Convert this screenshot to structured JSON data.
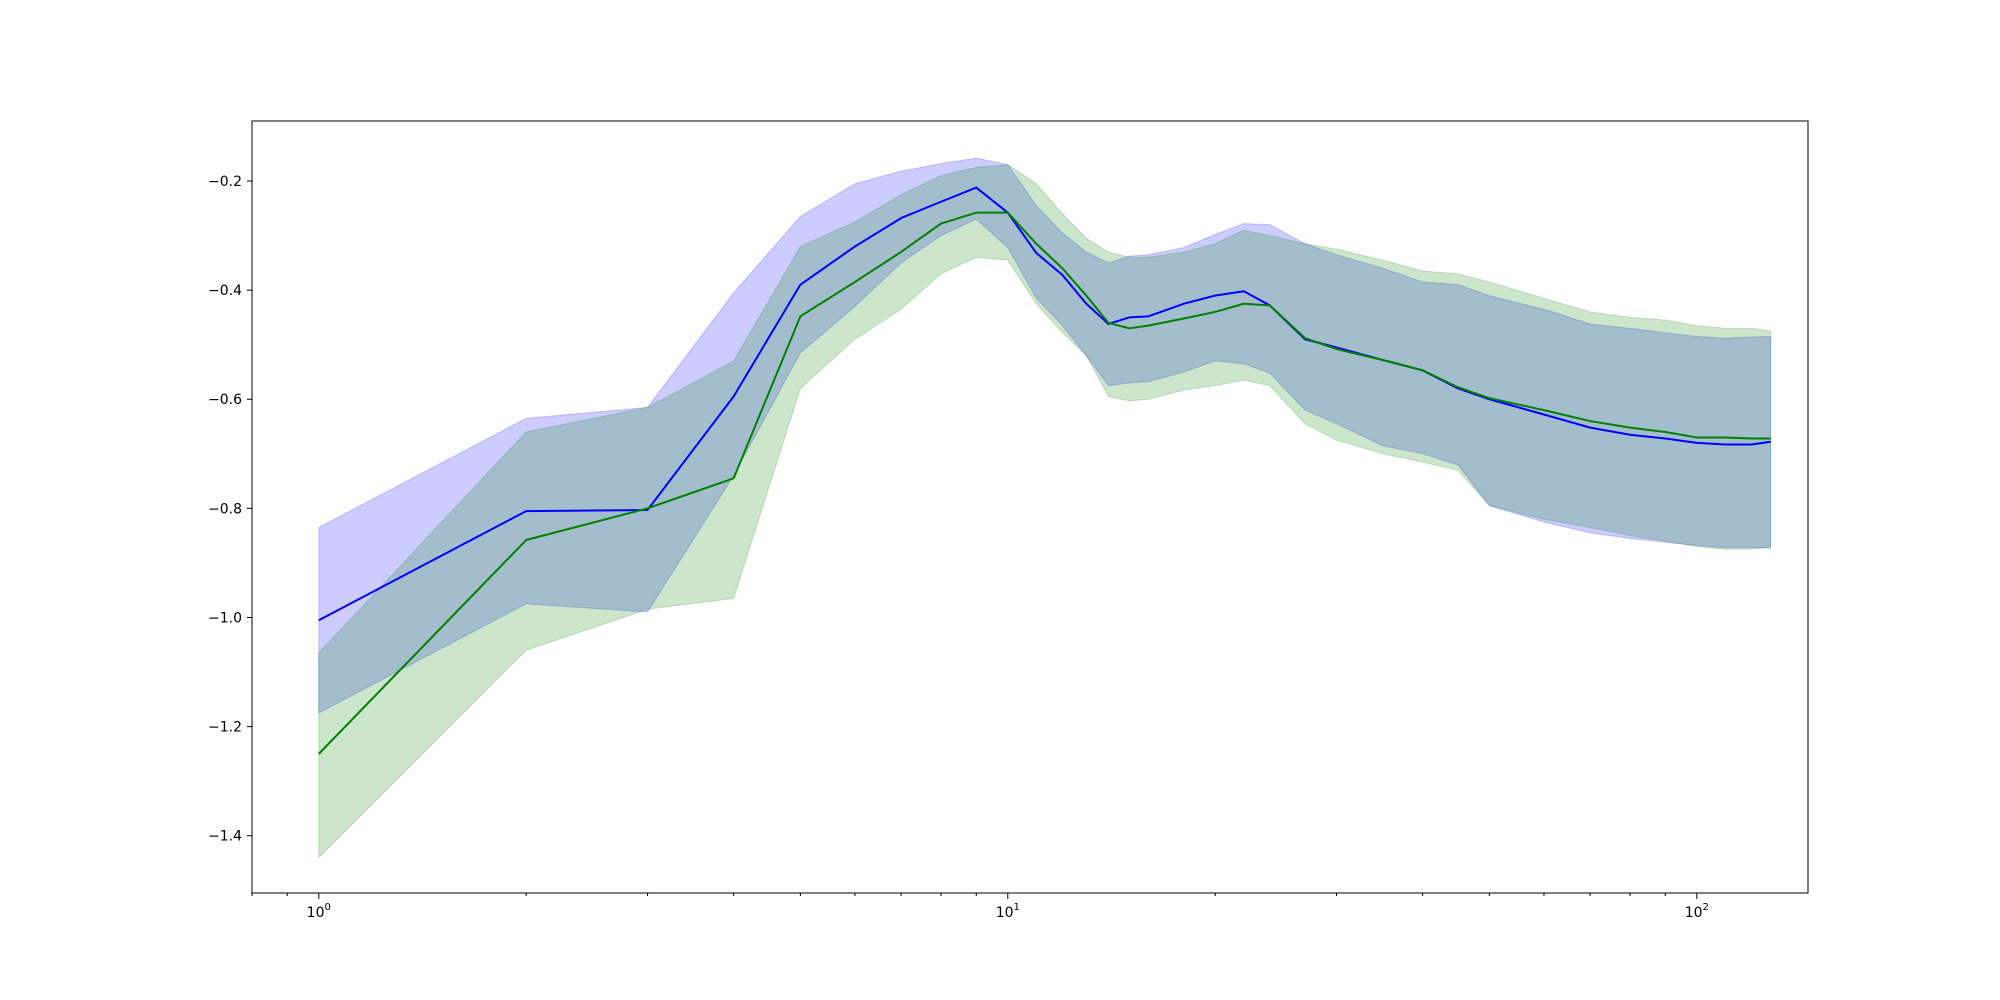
{
  "chart_data": {
    "type": "line",
    "title": "",
    "xlabel": "",
    "ylabel": "",
    "xscale": "log",
    "xlim": [
      0.8,
      145
    ],
    "ylim": [
      -1.505,
      -0.09
    ],
    "grid": false,
    "legend": "none",
    "x_ticks": [
      {
        "value": 1,
        "base": "10",
        "exp": "0"
      },
      {
        "value": 10,
        "base": "10",
        "exp": "1"
      },
      {
        "value": 100,
        "base": "10",
        "exp": "2"
      }
    ],
    "y_ticks": [
      {
        "value": -1.4,
        "label": "−1.4"
      },
      {
        "value": -1.2,
        "label": "−1.2"
      },
      {
        "value": -1.0,
        "label": "−1.0"
      },
      {
        "value": -0.8,
        "label": "−0.8"
      },
      {
        "value": -0.6,
        "label": "−0.6"
      },
      {
        "value": -0.4,
        "label": "−0.4"
      },
      {
        "value": -0.2,
        "label": "−0.2"
      }
    ],
    "series": [
      {
        "color": "#0000ff",
        "band_opacity": 0.2,
        "x": [
          1,
          2,
          3,
          4,
          5,
          6,
          7,
          8,
          9,
          10,
          11,
          12,
          13,
          14,
          15,
          16,
          18,
          20,
          22,
          24,
          27,
          30,
          35,
          40,
          45,
          50,
          60,
          70,
          80,
          90,
          100,
          110,
          120,
          128
        ],
        "y": [
          -1.005,
          -0.805,
          -0.803,
          -0.595,
          -0.39,
          -0.32,
          -0.268,
          -0.238,
          -0.212,
          -0.258,
          -0.332,
          -0.372,
          -0.425,
          -0.462,
          -0.45,
          -0.448,
          -0.425,
          -0.41,
          -0.402,
          -0.428,
          -0.49,
          -0.505,
          -0.528,
          -0.547,
          -0.58,
          -0.6,
          -0.628,
          -0.652,
          -0.665,
          -0.672,
          -0.68,
          -0.683,
          -0.683,
          -0.678
        ],
        "lower": [
          -1.175,
          -0.975,
          -0.99,
          -0.74,
          -0.515,
          -0.43,
          -0.35,
          -0.3,
          -0.27,
          -0.322,
          -0.415,
          -0.465,
          -0.52,
          -0.575,
          -0.57,
          -0.568,
          -0.55,
          -0.53,
          -0.535,
          -0.552,
          -0.62,
          -0.645,
          -0.685,
          -0.7,
          -0.72,
          -0.795,
          -0.825,
          -0.845,
          -0.855,
          -0.862,
          -0.868,
          -0.872,
          -0.872,
          -0.873
        ],
        "upper": [
          -0.835,
          -0.635,
          -0.615,
          -0.405,
          -0.265,
          -0.205,
          -0.182,
          -0.168,
          -0.158,
          -0.17,
          -0.245,
          -0.295,
          -0.33,
          -0.35,
          -0.338,
          -0.335,
          -0.322,
          -0.298,
          -0.278,
          -0.28,
          -0.315,
          -0.335,
          -0.36,
          -0.385,
          -0.39,
          -0.41,
          -0.435,
          -0.462,
          -0.47,
          -0.478,
          -0.485,
          -0.488,
          -0.486,
          -0.485
        ]
      },
      {
        "color": "#008000",
        "band_opacity": 0.2,
        "x": [
          1,
          2,
          3,
          4,
          5,
          6,
          7,
          8,
          9,
          10,
          11,
          12,
          13,
          14,
          15,
          16,
          18,
          20,
          22,
          24,
          27,
          30,
          35,
          40,
          45,
          50,
          60,
          70,
          80,
          90,
          100,
          110,
          120,
          128
        ],
        "y": [
          -1.25,
          -0.858,
          -0.8,
          -0.745,
          -0.448,
          -0.385,
          -0.33,
          -0.278,
          -0.258,
          -0.258,
          -0.315,
          -0.36,
          -0.41,
          -0.46,
          -0.47,
          -0.465,
          -0.452,
          -0.44,
          -0.425,
          -0.428,
          -0.488,
          -0.508,
          -0.528,
          -0.547,
          -0.578,
          -0.598,
          -0.62,
          -0.64,
          -0.652,
          -0.66,
          -0.67,
          -0.67,
          -0.672,
          -0.672
        ],
        "lower": [
          -1.44,
          -1.06,
          -0.985,
          -0.965,
          -0.58,
          -0.49,
          -0.435,
          -0.37,
          -0.34,
          -0.345,
          -0.425,
          -0.478,
          -0.52,
          -0.595,
          -0.603,
          -0.6,
          -0.583,
          -0.575,
          -0.565,
          -0.575,
          -0.645,
          -0.675,
          -0.7,
          -0.715,
          -0.73,
          -0.795,
          -0.82,
          -0.835,
          -0.85,
          -0.86,
          -0.87,
          -0.875,
          -0.875,
          -0.87
        ],
        "upper": [
          -1.065,
          -0.66,
          -0.615,
          -0.53,
          -0.32,
          -0.275,
          -0.225,
          -0.19,
          -0.175,
          -0.17,
          -0.205,
          -0.26,
          -0.305,
          -0.33,
          -0.34,
          -0.34,
          -0.33,
          -0.315,
          -0.29,
          -0.3,
          -0.315,
          -0.325,
          -0.345,
          -0.365,
          -0.37,
          -0.385,
          -0.415,
          -0.44,
          -0.45,
          -0.455,
          -0.465,
          -0.47,
          -0.47,
          -0.475
        ]
      }
    ]
  }
}
